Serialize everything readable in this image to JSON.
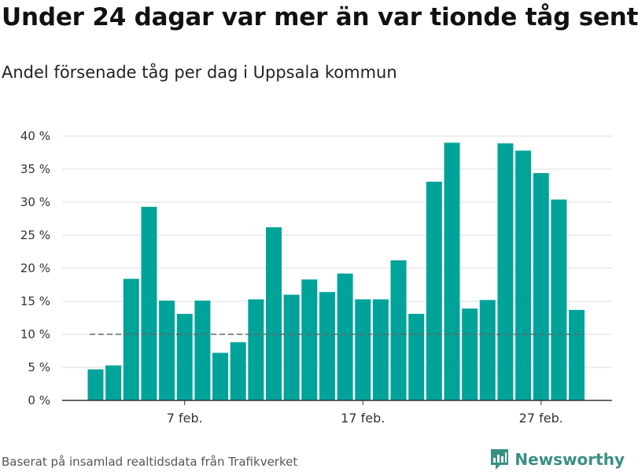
{
  "title": "Under 24 dagar var mer än var tionde tåg sent",
  "subtitle": "Andel försenade tåg per dag i Uppsala kommun",
  "source": "Baserat på insamlad realtidsdata från Trafikverket",
  "brand": "Newsworthy",
  "colors": {
    "bar": "#00a39a",
    "reference_line": "#666666",
    "grid": "#dddddd",
    "axis": "#333333",
    "brand": "#3a8f85"
  },
  "chart_data": {
    "type": "bar",
    "title": "Under 24 dagar var mer än var tionde tåg sent",
    "subtitle": "Andel försenade tåg per dag i Uppsala kommun",
    "x": [
      "2/2",
      "3/2",
      "4/2",
      "5/2",
      "6/2",
      "7/2",
      "8/2",
      "9/2",
      "10/2",
      "11/2",
      "12/2",
      "13/2",
      "14/2",
      "15/2",
      "16/2",
      "17/2",
      "18/2",
      "19/2",
      "20/2",
      "21/2",
      "22/2",
      "23/2",
      "24/2",
      "25/2",
      "26/2",
      "27/2",
      "28/2",
      "29/2",
      "1/3"
    ],
    "values": [
      4.7,
      5.3,
      18.4,
      29.3,
      15.1,
      13.1,
      15.1,
      7.2,
      8.8,
      15.3,
      26.2,
      16.0,
      18.3,
      16.4,
      19.2,
      15.3,
      15.3,
      21.2,
      13.1,
      33.1,
      39.0,
      13.9,
      15.2,
      38.9,
      37.8,
      34.4,
      30.4,
      13.7,
      null
    ],
    "xticks": [
      {
        "x": "7/2",
        "label": "7 feb."
      },
      {
        "x": "17/2",
        "label": "17 feb."
      },
      {
        "x": "27/2",
        "label": "27 feb."
      }
    ],
    "yticks": [
      {
        "value": 0,
        "label": "0 %"
      },
      {
        "value": 5,
        "label": "5 %"
      },
      {
        "value": 10,
        "label": "10 %"
      },
      {
        "value": 15,
        "label": "15 %"
      },
      {
        "value": 20,
        "label": "20 %"
      },
      {
        "value": 25,
        "label": "25 %"
      },
      {
        "value": 30,
        "label": "30 %"
      },
      {
        "value": 35,
        "label": "35 %"
      },
      {
        "value": 40,
        "label": "40 %"
      }
    ],
    "ylim": [
      0,
      40
    ],
    "grid": true,
    "reference_line": {
      "value": 10,
      "style": "dashed"
    }
  }
}
